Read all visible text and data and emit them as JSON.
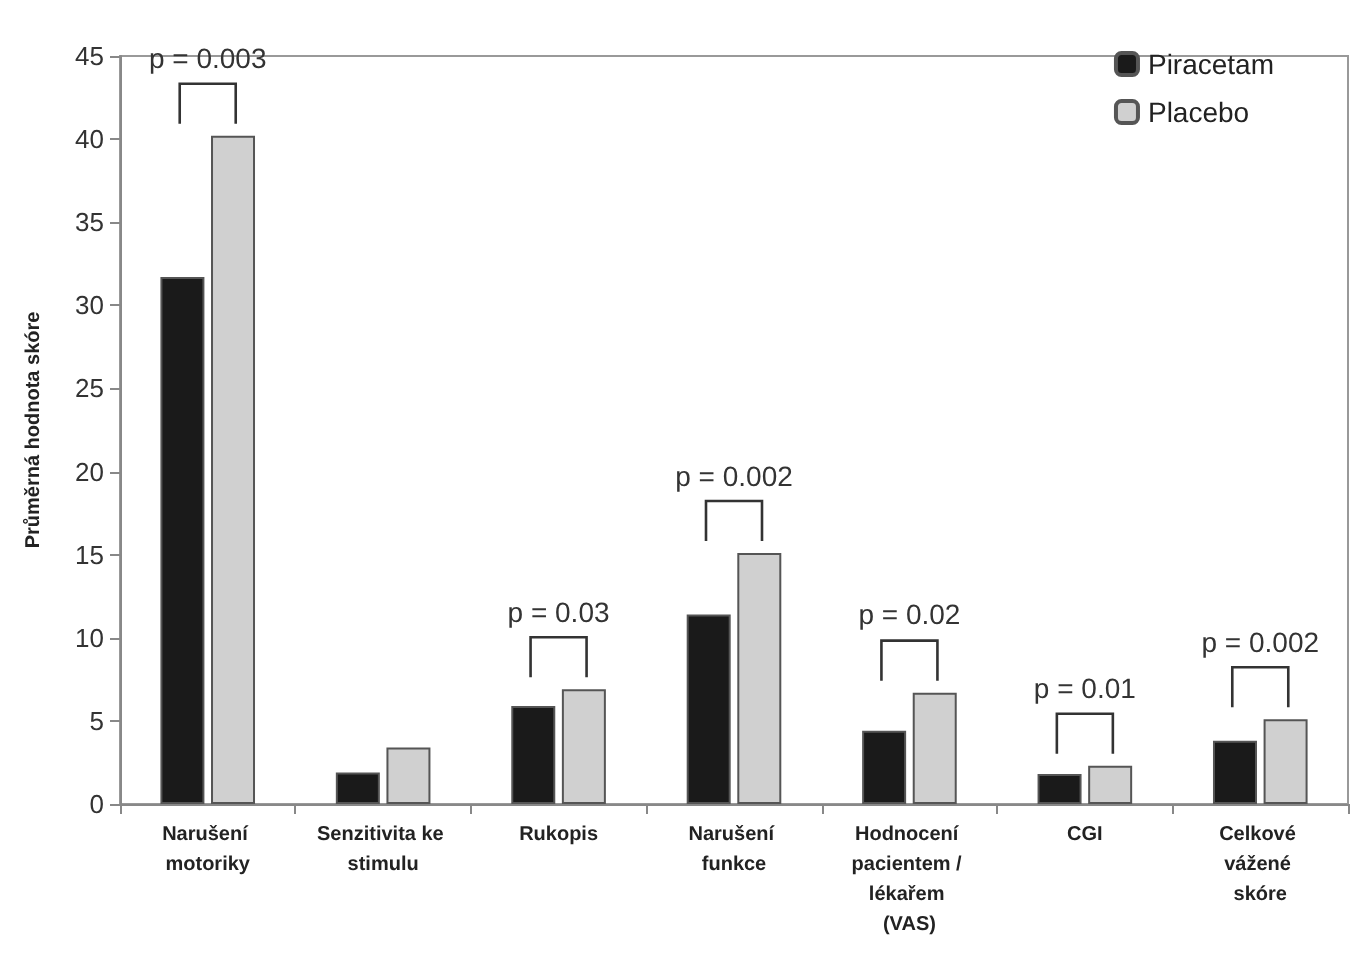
{
  "chart_data": {
    "type": "bar",
    "ylabel": "Průměrná hodnota skóre",
    "categories": [
      "Narušení motoriky",
      "Senzitivita ke stimulu",
      "Rukopis",
      "Narušení funkce",
      "Hodnocení pacientem / lékařem (VAS)",
      "CGI",
      "Celkové vážené skóre"
    ],
    "series": [
      {
        "name": "Piracetam",
        "color": "#1a1a1a",
        "values": [
          31.7,
          1.9,
          5.9,
          11.4,
          4.4,
          1.8,
          3.8
        ]
      },
      {
        "name": "Placebo",
        "color": "#d0d0d0",
        "values": [
          40.2,
          3.4,
          6.9,
          15.1,
          6.7,
          2.3,
          5.1
        ]
      }
    ],
    "ylim": [
      0,
      45
    ],
    "yticks": [
      0,
      5,
      10,
      15,
      20,
      25,
      30,
      35,
      40,
      45
    ],
    "grid": false,
    "legend": "top right",
    "annotations": [
      {
        "text": "p = 0.003",
        "x": "Narušení motoriky",
        "y": 40.2
      },
      {
        "text": "p = 0.03",
        "x": "Rukopis",
        "y": 6.9
      },
      {
        "text": "p = 0.002",
        "x": "Narušení funkce",
        "y": 15.1
      },
      {
        "text": "p = 0.02",
        "x": "Hodnocení pacientem / lékařem (VAS)",
        "y": 6.7
      },
      {
        "text": "p = 0.01",
        "x": "CGI",
        "y": 2.3
      },
      {
        "text": "p = 0.002",
        "x": "Celkové vážené skóre",
        "y": 5.1
      }
    ]
  }
}
